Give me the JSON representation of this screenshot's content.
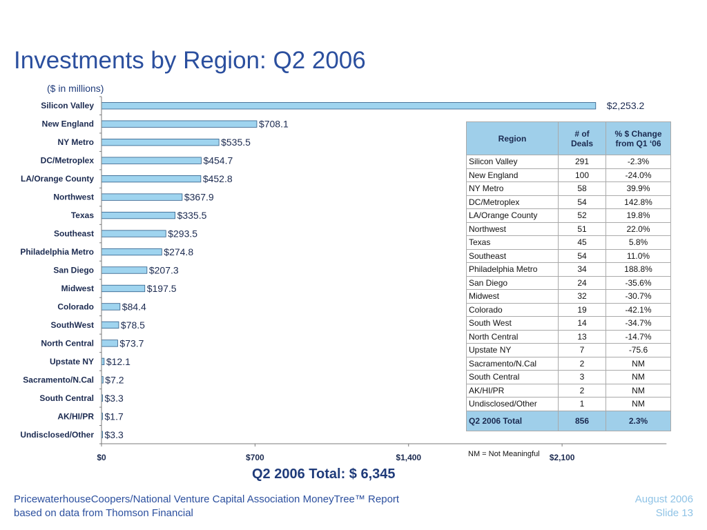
{
  "slide": {
    "title": "Investments by Region: Q2 2006",
    "subtitle": "($ in millions)",
    "total_label": "Q2 2006 Total: $ 6,345",
    "footer_line1": "PricewaterhouseCoopers/National Venture Capital Association MoneyTree™ Report",
    "footer_line2": "based on data from Thomson Financial",
    "date": "August 2006",
    "slide_number": "Slide 13",
    "nm_note": "NM = Not  Meaningful"
  },
  "chart_data": {
    "type": "bar",
    "orientation": "horizontal",
    "categories": [
      "Silicon Valley",
      "New England",
      "NY Metro",
      "DC/Metroplex",
      "LA/Orange County",
      "Northwest",
      "Texas",
      "Southeast",
      "Philadelphia Metro",
      "San Diego",
      "Midwest",
      "Colorado",
      "SouthWest",
      "North Central",
      "Upstate NY",
      "Sacramento/N.Cal",
      "South Central",
      "AK/HI/PR",
      "Undisclosed/Other"
    ],
    "values": [
      2253.2,
      708.1,
      535.5,
      454.7,
      452.8,
      367.9,
      335.5,
      293.5,
      274.8,
      207.3,
      197.5,
      84.4,
      78.5,
      73.7,
      12.1,
      7.2,
      3.3,
      1.7,
      3.3
    ],
    "value_labels": [
      "$2,253.2",
      "$708.1",
      "$535.5",
      "$454.7",
      "$452.8",
      "$367.9",
      "$335.5",
      "$293.5",
      "$274.8",
      "$207.3",
      "$197.5",
      "$84.4",
      "$78.5",
      "$73.7",
      "$12.1",
      "$7.2",
      "$3.3",
      "$1.7",
      "$3.3"
    ],
    "x_ticks": [
      0,
      700,
      1400,
      2100
    ],
    "x_tick_labels": [
      "$0",
      "$700",
      "$1,400",
      "$2,100"
    ],
    "xlim": [
      0,
      2450
    ],
    "bar_color": "#9fd4ef",
    "bar_stroke": "#2b5a86"
  },
  "table": {
    "headers": {
      "region": "Region",
      "deals_line1": "# of",
      "deals_line2": "Deals",
      "change_line1": "% $ Change",
      "change_line2": "from Q1 ‘06"
    },
    "rows": [
      {
        "region": "Silicon Valley",
        "deals": "291",
        "change": "-2.3%"
      },
      {
        "region": "New England",
        "deals": "100",
        "change": "-24.0%"
      },
      {
        "region": "NY Metro",
        "deals": "58",
        "change": "39.9%"
      },
      {
        "region": "DC/Metroplex",
        "deals": "54",
        "change": "142.8%"
      },
      {
        "region": "LA/Orange County",
        "deals": "52",
        "change": "19.8%"
      },
      {
        "region": "Northwest",
        "deals": "51",
        "change": "22.0%"
      },
      {
        "region": "Texas",
        "deals": "45",
        "change": "5.8%"
      },
      {
        "region": "Southeast",
        "deals": "54",
        "change": "11.0%"
      },
      {
        "region": "Philadelphia Metro",
        "deals": "34",
        "change": "188.8%"
      },
      {
        "region": "San Diego",
        "deals": "24",
        "change": "-35.6%"
      },
      {
        "region": "Midwest",
        "deals": "32",
        "change": "-30.7%"
      },
      {
        "region": "Colorado",
        "deals": "19",
        "change": "-42.1%"
      },
      {
        "region": "South West",
        "deals": "14",
        "change": "-34.7%"
      },
      {
        "region": "North Central",
        "deals": "13",
        "change": "-14.7%"
      },
      {
        "region": "Upstate NY",
        "deals": "7",
        "change": "-75.6"
      },
      {
        "region": "Sacramento/N.Cal",
        "deals": "2",
        "change": "NM"
      },
      {
        "region": "South Central",
        "deals": "3",
        "change": "NM"
      },
      {
        "region": "AK/HI/PR",
        "deals": "2",
        "change": "NM"
      },
      {
        "region": "Undisclosed/Other",
        "deals": "1",
        "change": "NM"
      }
    ],
    "total": {
      "region": "Q2 2006 Total",
      "deals": "856",
      "change": "2.3%"
    }
  }
}
